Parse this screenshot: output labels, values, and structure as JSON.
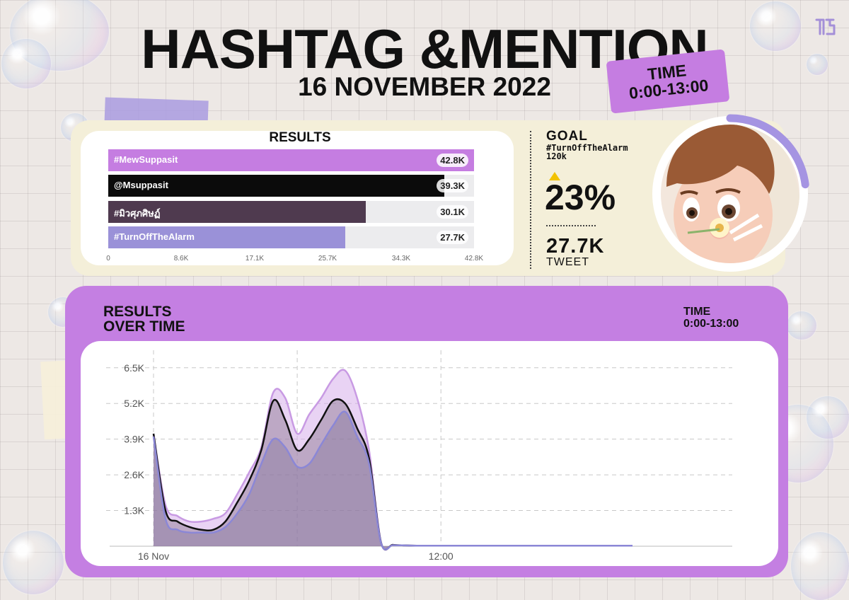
{
  "header": {
    "title": "HASHTAG &MENTION",
    "date": "16 NOVEMBER 2022",
    "time_label": "TIME",
    "time_range": "0:00-13:00"
  },
  "results": {
    "title": "RESULTS",
    "bars": [
      {
        "label": "#MewSuppasit",
        "value": 42.8,
        "display": "42.8K",
        "color": "#c57de1",
        "text_color": "#ffffff"
      },
      {
        "label": "@Msuppasit",
        "value": 39.3,
        "display": "39.3K",
        "color": "#0b0b0b",
        "text_color": "#ffffff"
      },
      {
        "label": "#มิวศุภศิษฏ์",
        "value": 30.1,
        "display": "30.1K",
        "color": "#4f3a4f",
        "text_color": "#ffffff"
      },
      {
        "label": "#TurnOffTheAlarm",
        "value": 27.7,
        "display": "27.7K",
        "color": "#9a91d8",
        "text_color": "#ffffff"
      }
    ],
    "x_ticks": [
      "0",
      "8.6K",
      "17.1K",
      "25.7K",
      "34.3K",
      "42.8K"
    ],
    "x_max": 42.8
  },
  "goal": {
    "label": "GOAL",
    "hashtag": "#TurnOffTheAlarm",
    "target": "120k",
    "percent": "23%",
    "tweets": "27.7K",
    "tweets_label": "TWEET",
    "progress": 0.23,
    "ring_color": "#a594e2"
  },
  "over_time": {
    "title_line1": "RESULTS",
    "title_line2": "OVER TIME",
    "time_label": "TIME",
    "time_range": "0:00-13:00"
  },
  "chart_data": [
    {
      "type": "bar",
      "title": "RESULTS",
      "categories": [
        "#MewSuppasit",
        "@Msuppasit",
        "#มิวศุภศิษฏ์",
        "#TurnOffTheAlarm"
      ],
      "values": [
        42.8,
        39.3,
        30.1,
        27.7
      ],
      "unit": "K",
      "xlim": [
        0,
        42.8
      ],
      "x_ticks": [
        "0",
        "8.6K",
        "17.1K",
        "25.7K",
        "34.3K",
        "42.8K"
      ],
      "orientation": "horizontal"
    },
    {
      "type": "area",
      "title": "RESULTS OVER TIME",
      "x_labels": [
        "16 Nov",
        "12:00"
      ],
      "y_ticks": [
        "1.3K",
        "2.6K",
        "3.9K",
        "5.2K",
        "6.5K"
      ],
      "ylim": [
        0,
        6.5
      ],
      "unit": "K",
      "grid": true,
      "x_hours": [
        0,
        0.5,
        1,
        1.5,
        2,
        2.5,
        3,
        3.5,
        4,
        4.5,
        5,
        5.5,
        6,
        6.5,
        7,
        7.5,
        8,
        8.5,
        9,
        9.5,
        10,
        10.5,
        11,
        11.5,
        12,
        12.5,
        13,
        14,
        16,
        18,
        20
      ],
      "series": [
        {
          "color": "#c89ae3",
          "fill": "rgba(215,175,235,0.55)",
          "values": [
            4.1,
            1.5,
            1.1,
            0.9,
            0.9,
            1.0,
            1.2,
            1.9,
            2.7,
            3.6,
            5.6,
            5.4,
            4.1,
            4.8,
            5.4,
            6.1,
            6.4,
            5.4,
            3.5,
            0.15,
            0.05,
            0.03,
            0.02,
            0.02,
            0.02,
            0.02,
            0.02,
            0.02,
            0.02,
            0.02,
            0.02
          ]
        },
        {
          "color": "#111111",
          "fill": "rgba(90,70,90,0.30)",
          "values": [
            4.1,
            1.3,
            0.9,
            0.7,
            0.6,
            0.6,
            0.9,
            1.6,
            2.4,
            3.5,
            5.3,
            4.6,
            3.5,
            3.9,
            4.6,
            5.3,
            5.2,
            4.3,
            3.2,
            0.13,
            0.05,
            0.03,
            0.02,
            0.02,
            0.02,
            0.02,
            0.02,
            0.02,
            0.02,
            0.02,
            0.02
          ]
        },
        {
          "color": "#8b87d6",
          "fill": "rgba(120,110,150,0.35)",
          "values": [
            4.0,
            1.0,
            0.6,
            0.5,
            0.5,
            0.5,
            0.7,
            1.2,
            1.9,
            3.0,
            3.9,
            3.6,
            2.9,
            3.0,
            3.7,
            4.4,
            4.9,
            4.0,
            3.0,
            0.12,
            0.04,
            0.03,
            0.02,
            0.02,
            0.02,
            0.02,
            0.02,
            0.02,
            0.02,
            0.02,
            0.02
          ]
        }
      ]
    }
  ]
}
